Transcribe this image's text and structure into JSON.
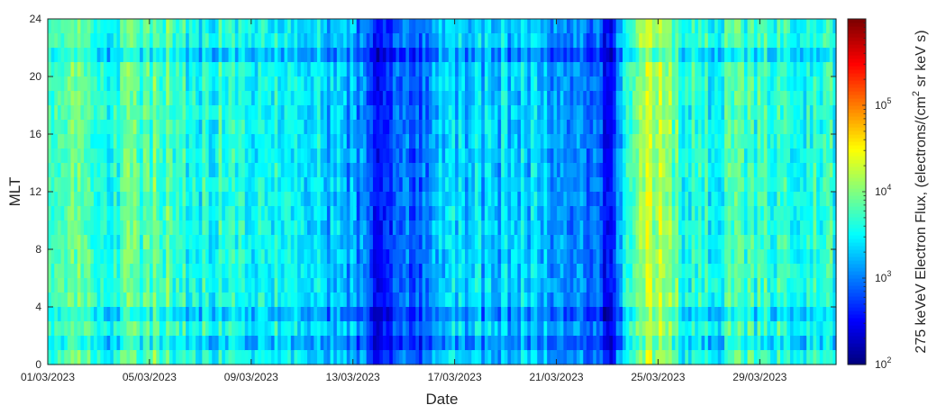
{
  "chart_data": {
    "type": "heatmap",
    "title": "",
    "xlabel": "Date",
    "ylabel": "MLT",
    "x_range": [
      "01/03/2023",
      "31/03/2023"
    ],
    "xticks": [
      "01/03/2023",
      "05/03/2023",
      "09/03/2023",
      "13/03/2023",
      "17/03/2023",
      "21/03/2023",
      "25/03/2023",
      "29/03/2023"
    ],
    "ylim": [
      0,
      24
    ],
    "yticks": [
      "0",
      "4",
      "8",
      "12",
      "16",
      "20",
      "24"
    ],
    "colorbar": {
      "label": "275 keVeV Electron Flux, (electrons/(cm",
      "label_sup": "2",
      "label_tail": " sr keV s)",
      "scale": "log",
      "range": [
        100,
        1000000
      ],
      "ticks": [
        {
          "base": "10",
          "exp": "2",
          "value": 100
        },
        {
          "base": "10",
          "exp": "3",
          "value": 1000
        },
        {
          "base": "10",
          "exp": "4",
          "value": 10000
        },
        {
          "base": "10",
          "exp": "5",
          "value": 100000
        }
      ],
      "colormap": "jet"
    },
    "daily_median_log10_flux": [
      3.7,
      3.8,
      3.5,
      3.8,
      3.9,
      3.7,
      3.6,
      3.6,
      3.6,
      3.5,
      3.4,
      3.3,
      3.1,
      2.6,
      2.8,
      3.1,
      3.3,
      3.3,
      3.3,
      3.3,
      3.1,
      3.0,
      2.6,
      4.0,
      4.2,
      3.6,
      3.6,
      3.7,
      3.7,
      3.6,
      3.6
    ],
    "mlt_lowflux_bands": [
      1,
      3,
      21
    ],
    "grid": false
  }
}
